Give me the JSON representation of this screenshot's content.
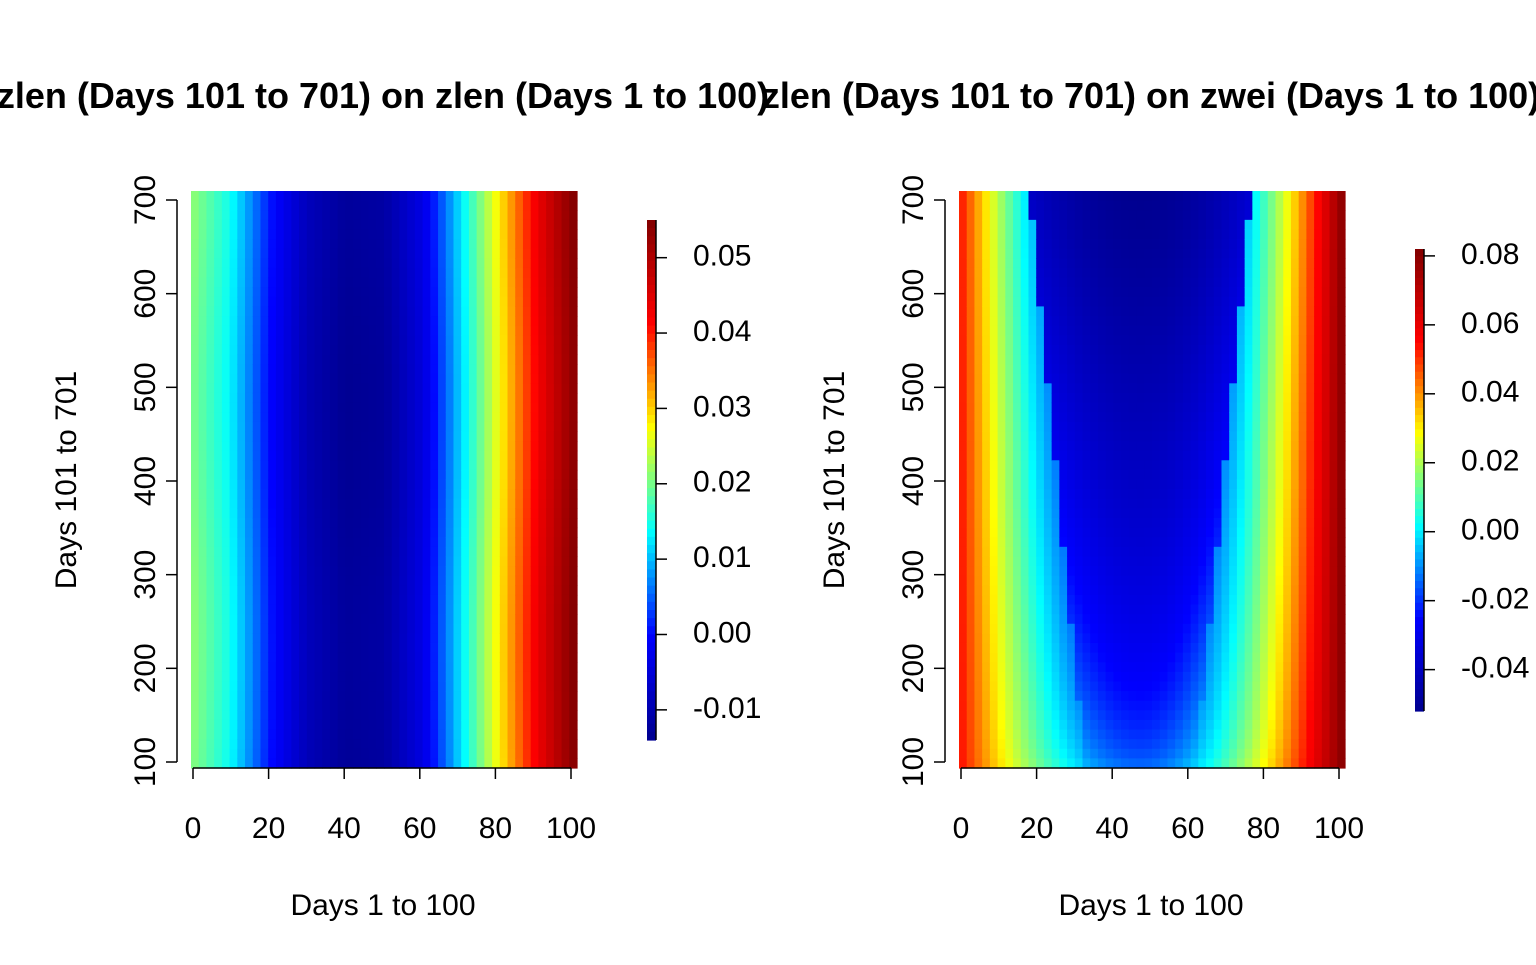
{
  "chart_data": [
    {
      "type": "heatmap",
      "title": "zlen (Days 101 to 701) on zlen (Days 1 to 100)",
      "xlabel": "Days 1 to 100",
      "ylabel": "Days 101 to 701",
      "xlim": [
        0,
        100
      ],
      "ylim": [
        100,
        700
      ],
      "x_ticks": [
        "0",
        "20",
        "40",
        "60",
        "80",
        "100"
      ],
      "y_ticks": [
        "100",
        "200",
        "300",
        "400",
        "500",
        "600",
        "700"
      ],
      "colorbar": {
        "min": -0.014,
        "max": 0.055,
        "ticks": [
          "-0.01",
          "0.00",
          "0.01",
          "0.02",
          "0.03",
          "0.04",
          "0.05"
        ],
        "tick_values": [
          -0.01,
          0.0,
          0.01,
          0.02,
          0.03,
          0.04,
          0.05
        ]
      },
      "palette": [
        "#00008f",
        "#0000ff",
        "#00ffff",
        "#ffff00",
        "#ff0000",
        "#800000"
      ],
      "surface": {
        "profile": [
          [
            0,
            0.021
          ],
          [
            10,
            0.014
          ],
          [
            20,
            0.001
          ],
          [
            30,
            -0.009
          ],
          [
            40,
            -0.013
          ],
          [
            50,
            -0.012
          ],
          [
            60,
            -0.004
          ],
          [
            70,
            0.012
          ],
          [
            80,
            0.028
          ],
          [
            90,
            0.043
          ],
          [
            100,
            0.055
          ]
        ],
        "variation_by_y": "nearly constant"
      }
    },
    {
      "type": "heatmap",
      "title": "zlen (Days 101 to 701) on zwei (Days 1 to 100)",
      "xlabel": "Days 1 to 100",
      "ylabel": "Days 101 to 701",
      "xlim": [
        0,
        100
      ],
      "ylim": [
        100,
        700
      ],
      "x_ticks": [
        "0",
        "20",
        "40",
        "60",
        "80",
        "100"
      ],
      "y_ticks": [
        "100",
        "200",
        "300",
        "400",
        "500",
        "600",
        "700"
      ],
      "colorbar": {
        "min": -0.052,
        "max": 0.082,
        "ticks": [
          "-0.04",
          "-0.02",
          "0.00",
          "0.02",
          "0.04",
          "0.06",
          "0.08"
        ],
        "tick_values": [
          -0.04,
          -0.02,
          0.0,
          0.02,
          0.04,
          0.06,
          0.08
        ]
      },
      "palette": [
        "#00008f",
        "#0000ff",
        "#00ffff",
        "#ffff00",
        "#ff0000",
        "#800000"
      ],
      "surface": {
        "edge_value_at_x0": 0.055,
        "edge_value_at_x100": 0.082,
        "center_x": 47,
        "trough_width_days": 24,
        "trough_at_y100": -0.012,
        "trough_at_y700": -0.052
      }
    }
  ]
}
